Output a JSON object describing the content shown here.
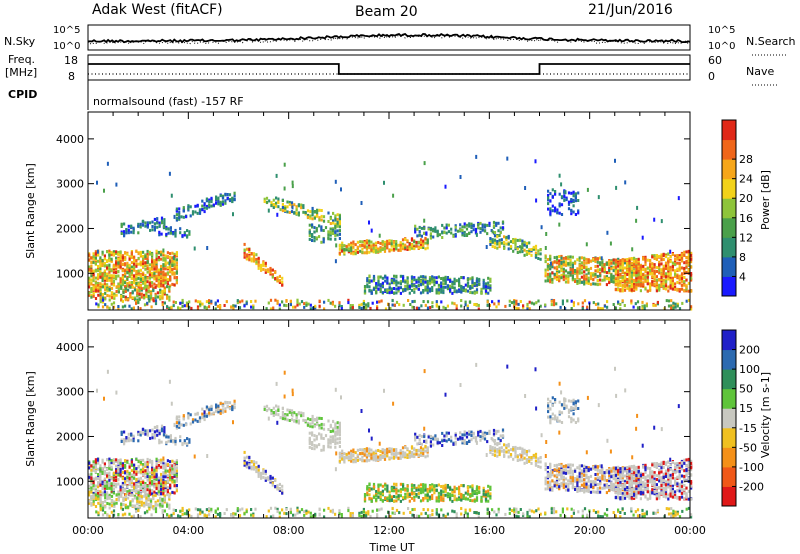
{
  "header": {
    "title_left": "Adak West (fitACF)",
    "title_center": "Beam 20",
    "title_right": "21/Jun/2016"
  },
  "aux": {
    "nsky_label": "N.Sky",
    "nsearch_label": "N.Search",
    "freq_label_1": "Freq.",
    "freq_label_2": "[MHz]",
    "nave_label": "Nave",
    "cpid_label": "CPID",
    "cpid_text": "normalsound (fast) -157 RF",
    "noise_ticks": [
      "10^5",
      "10^0"
    ],
    "freq_ticks": [
      "18",
      "8"
    ],
    "nave_ticks": [
      "60",
      "0"
    ]
  },
  "chart_data": [
    {
      "type": "heatmap",
      "name": "power",
      "xlabel": "",
      "ylabel": "Slant Range [km]",
      "xlim": [
        0,
        24
      ],
      "ylim": [
        180,
        4600
      ],
      "yticks": [
        "1000",
        "2000",
        "3000",
        "4000"
      ],
      "colorbar_label": "Power [dB]",
      "colorbar_ticks": [
        "4",
        "8",
        "12",
        "16",
        "20",
        "24",
        "28"
      ],
      "colorbar_colors": [
        "#1a1aff",
        "#1f5fb8",
        "#2f8f6f",
        "#4aa04a",
        "#8ec43a",
        "#f2d21a",
        "#f6a61a",
        "#f0661a",
        "#e02818"
      ]
    },
    {
      "type": "heatmap",
      "name": "velocity",
      "xlabel": "Time UT",
      "ylabel": "Slant Range [km]",
      "xlim": [
        0,
        24
      ],
      "ylim": [
        180,
        4600
      ],
      "xticks": [
        "00:00",
        "04:00",
        "08:00",
        "12:00",
        "16:00",
        "20:00",
        "00:00"
      ],
      "yticks": [
        "1000",
        "2000",
        "3000",
        "4000"
      ],
      "colorbar_label": "Velocity [m s-1]",
      "colorbar_ticks": [
        "200",
        "100",
        "50",
        "15",
        "-15",
        "-50",
        "-100",
        "-200"
      ],
      "colorbar_colors": [
        "#2020c8",
        "#2c6ab0",
        "#2f8f5a",
        "#5fc43a",
        "#c8c8c0",
        "#f0c020",
        "#f49018",
        "#f05818",
        "#e01818"
      ]
    }
  ]
}
